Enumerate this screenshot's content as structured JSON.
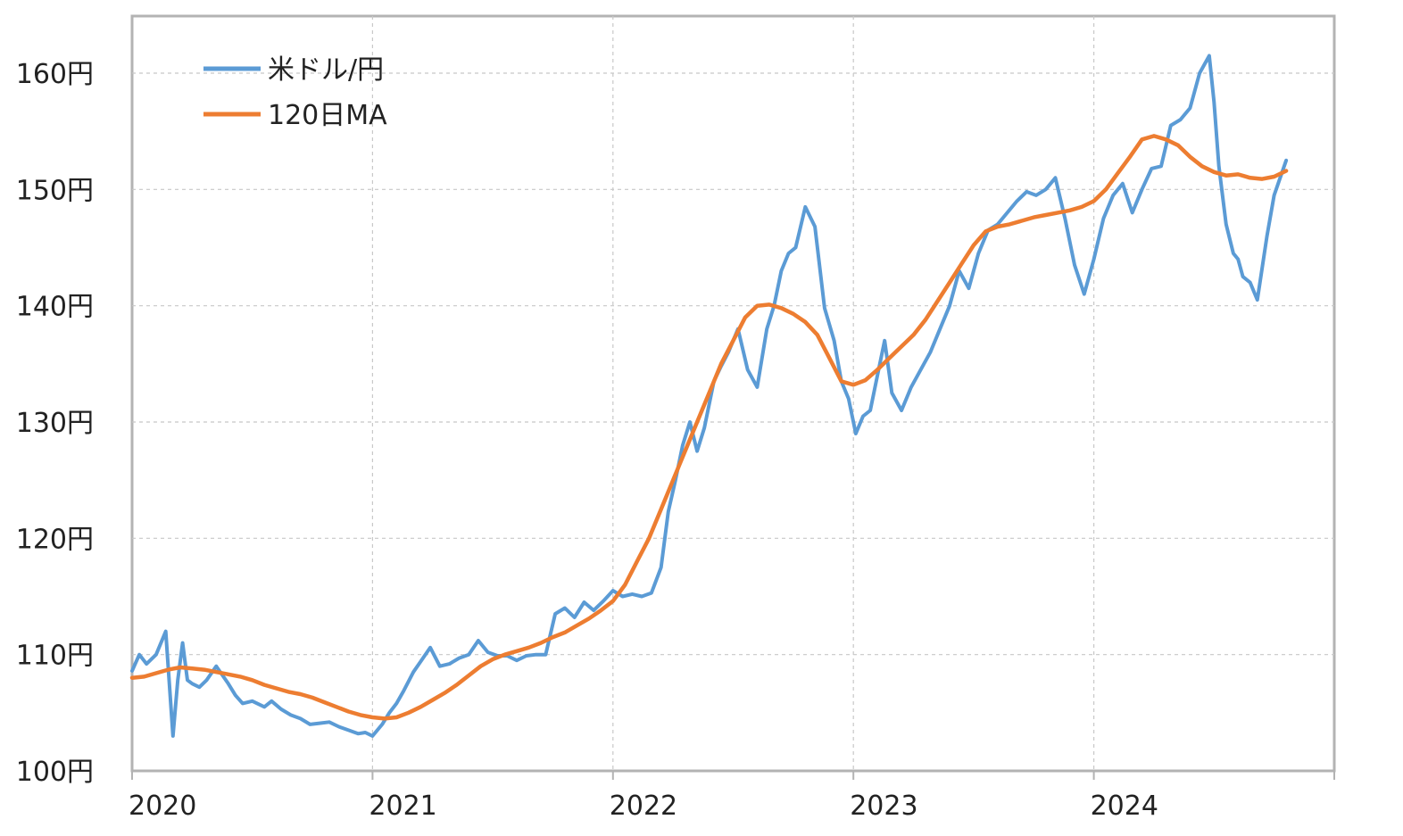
{
  "chart_data": {
    "type": "line",
    "title": "",
    "xlabel": "",
    "ylabel": "",
    "ylim": [
      100,
      165
    ],
    "xlim": [
      2020.0,
      2025.0
    ],
    "y_unit_suffix": "円",
    "y_ticks": [
      100,
      110,
      120,
      130,
      140,
      150,
      160
    ],
    "x_ticks": [
      {
        "value": 2020,
        "label": "2020"
      },
      {
        "value": 2021,
        "label": "2021"
      },
      {
        "value": 2022,
        "label": "2022"
      },
      {
        "value": 2023,
        "label": "2023"
      },
      {
        "value": 2024,
        "label": "2024"
      }
    ],
    "grid": true,
    "legend_position": "top-left",
    "series": [
      {
        "name": "米ドル/円",
        "color": "#5b9bd5",
        "x": [
          2020.0,
          2020.03,
          2020.06,
          2020.1,
          2020.14,
          2020.17,
          2020.19,
          2020.21,
          2020.23,
          2020.25,
          2020.28,
          2020.31,
          2020.35,
          2020.4,
          2020.43,
          2020.46,
          2020.5,
          2020.55,
          2020.58,
          2020.62,
          2020.66,
          2020.7,
          2020.74,
          2020.78,
          2020.82,
          2020.86,
          2020.9,
          2020.94,
          2020.97,
          2021.0,
          2021.04,
          2021.07,
          2021.1,
          2021.13,
          2021.17,
          2021.2,
          2021.24,
          2021.28,
          2021.32,
          2021.36,
          2021.4,
          2021.44,
          2021.48,
          2021.52,
          2021.56,
          2021.6,
          2021.64,
          2021.68,
          2021.72,
          2021.76,
          2021.8,
          2021.84,
          2021.88,
          2021.92,
          2021.96,
          2022.0,
          2022.04,
          2022.08,
          2022.12,
          2022.16,
          2022.2,
          2022.23,
          2022.26,
          2022.29,
          2022.32,
          2022.35,
          2022.38,
          2022.42,
          2022.45,
          2022.48,
          2022.52,
          2022.56,
          2022.6,
          2022.64,
          2022.67,
          2022.7,
          2022.73,
          2022.76,
          2022.8,
          2022.84,
          2022.88,
          2022.92,
          2022.95,
          2022.98,
          2023.01,
          2023.04,
          2023.07,
          2023.1,
          2023.13,
          2023.16,
          2023.2,
          2023.24,
          2023.28,
          2023.32,
          2023.36,
          2023.4,
          2023.44,
          2023.48,
          2023.52,
          2023.56,
          2023.6,
          2023.64,
          2023.68,
          2023.72,
          2023.76,
          2023.8,
          2023.84,
          2023.88,
          2023.92,
          2023.96,
          2024.0,
          2024.04,
          2024.08,
          2024.12,
          2024.16,
          2024.2,
          2024.24,
          2024.28,
          2024.32,
          2024.36,
          2024.4,
          2024.44,
          2024.48,
          2024.5,
          2024.52,
          2024.55,
          2024.58,
          2024.6,
          2024.62,
          2024.65,
          2024.68,
          2024.72,
          2024.75,
          2024.8
        ],
        "y": [
          108.6,
          110.0,
          109.2,
          110.0,
          112.0,
          103.0,
          107.8,
          111.0,
          107.8,
          107.5,
          107.2,
          107.8,
          109.0,
          107.5,
          106.5,
          105.8,
          106.0,
          105.5,
          106.0,
          105.3,
          104.8,
          104.5,
          104.0,
          104.1,
          104.2,
          103.8,
          103.5,
          103.2,
          103.3,
          103.0,
          104.0,
          105.0,
          105.8,
          106.9,
          108.5,
          109.4,
          110.6,
          109.0,
          109.2,
          109.7,
          110.0,
          111.2,
          110.2,
          109.9,
          109.9,
          109.5,
          109.9,
          110.0,
          110.0,
          113.5,
          114.0,
          113.2,
          114.5,
          113.8,
          114.6,
          115.5,
          115.0,
          115.2,
          115.0,
          115.3,
          117.5,
          122.3,
          125.0,
          128.0,
          130.0,
          127.5,
          129.5,
          133.5,
          134.8,
          136.0,
          138.0,
          134.5,
          133.0,
          138.0,
          140.0,
          143.0,
          144.5,
          145.0,
          148.5,
          146.8,
          139.8,
          137.0,
          133.5,
          132.0,
          129.0,
          130.5,
          131.0,
          134.0,
          137.0,
          132.5,
          131.0,
          133.0,
          134.5,
          136.0,
          138.0,
          140.0,
          143.0,
          141.5,
          144.5,
          146.5,
          147.0,
          148.0,
          149.0,
          149.8,
          149.5,
          150.0,
          151.0,
          147.5,
          143.5,
          141.0,
          144.0,
          147.5,
          149.5,
          150.5,
          148.0,
          150.0,
          151.8,
          152.0,
          155.5,
          156.0,
          157.0,
          160.0,
          161.5,
          157.5,
          152.0,
          147.0,
          144.5,
          144.0,
          142.5,
          142.0,
          140.5,
          146.0,
          149.5,
          152.5
        ]
      },
      {
        "name": "120日MA",
        "color": "#ed7d31",
        "x": [
          2020.0,
          2020.05,
          2020.1,
          2020.15,
          2020.2,
          2020.25,
          2020.3,
          2020.35,
          2020.4,
          2020.45,
          2020.5,
          2020.55,
          2020.6,
          2020.65,
          2020.7,
          2020.75,
          2020.8,
          2020.85,
          2020.9,
          2020.95,
          2021.0,
          2021.05,
          2021.1,
          2021.15,
          2021.2,
          2021.25,
          2021.3,
          2021.35,
          2021.4,
          2021.45,
          2021.5,
          2021.55,
          2021.6,
          2021.65,
          2021.7,
          2021.75,
          2021.8,
          2021.85,
          2021.9,
          2021.95,
          2022.0,
          2022.05,
          2022.1,
          2022.15,
          2022.2,
          2022.25,
          2022.3,
          2022.35,
          2022.4,
          2022.45,
          2022.5,
          2022.55,
          2022.6,
          2022.65,
          2022.7,
          2022.75,
          2022.8,
          2022.85,
          2022.9,
          2022.95,
          2023.0,
          2023.05,
          2023.1,
          2023.15,
          2023.2,
          2023.25,
          2023.3,
          2023.35,
          2023.4,
          2023.45,
          2023.5,
          2023.55,
          2023.6,
          2023.65,
          2023.7,
          2023.75,
          2023.8,
          2023.85,
          2023.9,
          2023.95,
          2024.0,
          2024.05,
          2024.1,
          2024.15,
          2024.2,
          2024.25,
          2024.3,
          2024.35,
          2024.4,
          2024.45,
          2024.5,
          2024.55,
          2024.6,
          2024.65,
          2024.7,
          2024.75,
          2024.8
        ],
        "y": [
          108.0,
          108.1,
          108.4,
          108.7,
          108.9,
          108.8,
          108.7,
          108.5,
          108.3,
          108.1,
          107.8,
          107.4,
          107.1,
          106.8,
          106.6,
          106.3,
          105.9,
          105.5,
          105.1,
          104.8,
          104.6,
          104.5,
          104.6,
          105.0,
          105.5,
          106.1,
          106.7,
          107.4,
          108.2,
          109.0,
          109.6,
          110.0,
          110.3,
          110.6,
          111.0,
          111.5,
          111.9,
          112.5,
          113.1,
          113.8,
          114.6,
          116.0,
          118.0,
          120.0,
          122.5,
          125.0,
          127.5,
          130.0,
          132.5,
          135.0,
          137.0,
          139.0,
          140.0,
          140.1,
          139.8,
          139.3,
          138.6,
          137.5,
          135.5,
          133.5,
          133.2,
          133.6,
          134.5,
          135.5,
          136.5,
          137.5,
          138.8,
          140.4,
          142.0,
          143.6,
          145.2,
          146.4,
          146.8,
          147.0,
          147.3,
          147.6,
          147.8,
          148.0,
          148.2,
          148.5,
          149.0,
          150.0,
          151.4,
          152.8,
          154.3,
          154.6,
          154.3,
          153.8,
          152.8,
          152.0,
          151.5,
          151.2,
          151.3,
          151.0,
          150.9,
          151.1,
          151.6
        ]
      }
    ]
  }
}
